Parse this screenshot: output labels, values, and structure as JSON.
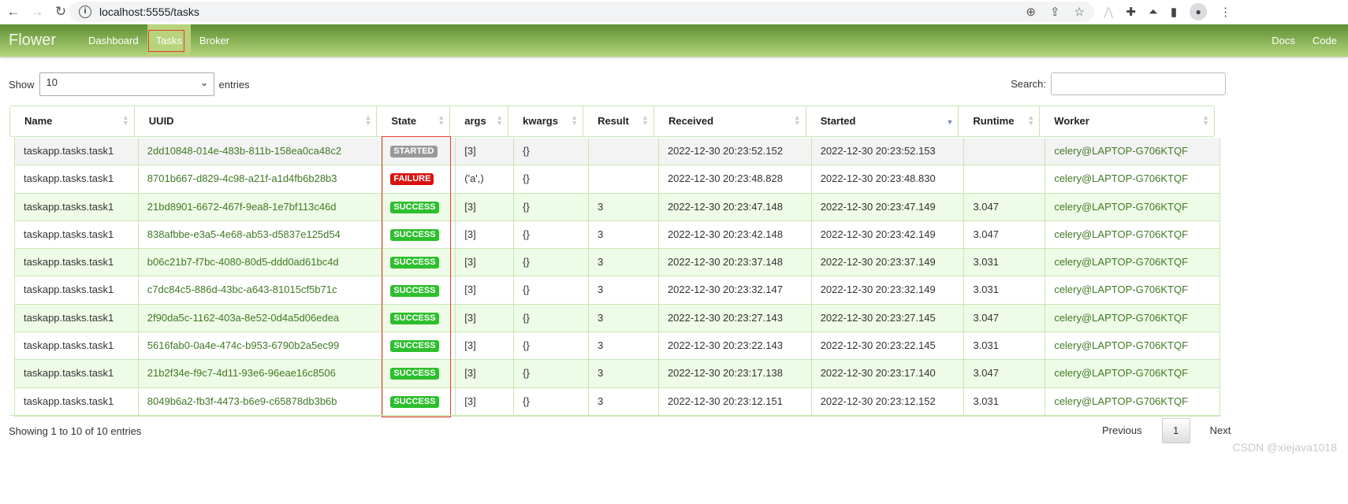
{
  "browser": {
    "url": "localhost:5555/tasks",
    "icons": [
      "back-icon",
      "forward-icon",
      "reload-icon",
      "info-icon",
      "zoom-icon",
      "share-icon",
      "star-icon",
      "extension-icon",
      "puzzle-icon",
      "lab-icon",
      "sidepanel-icon",
      "profile-icon",
      "menu-icon"
    ]
  },
  "navbar": {
    "brand": "Flower",
    "links": [
      "Dashboard",
      "Tasks",
      "Broker"
    ],
    "active": "Tasks",
    "right": [
      "Docs",
      "Code"
    ]
  },
  "controls": {
    "show_label": "Show",
    "page_size": "10",
    "entries_label": "entries",
    "search_label": "Search:",
    "search_value": ""
  },
  "table": {
    "columns": [
      "Name",
      "UUID",
      "State",
      "args",
      "kwargs",
      "Result",
      "Received",
      "Started",
      "Runtime",
      "Worker"
    ],
    "sorted_column": "Started",
    "sort_direction": "descending",
    "rows": [
      [
        "taskapp.tasks.task1",
        "2dd10848-014e-483b-811b-158ea0ca48c2",
        "STARTED",
        "[3]",
        "{}",
        "",
        "2022-12-30 20:23:52.152",
        "2022-12-30 20:23:52.153",
        "",
        "celery@LAPTOP-G706KTQF"
      ],
      [
        "taskapp.tasks.task1",
        "8701b667-d829-4c98-a21f-a1d4fb6b28b3",
        "FAILURE",
        "('a',)",
        "{}",
        "",
        "2022-12-30 20:23:48.828",
        "2022-12-30 20:23:48.830",
        "",
        "celery@LAPTOP-G706KTQF"
      ],
      [
        "taskapp.tasks.task1",
        "21bd8901-6672-467f-9ea8-1e7bf113c46d",
        "SUCCESS",
        "[3]",
        "{}",
        "3",
        "2022-12-30 20:23:47.148",
        "2022-12-30 20:23:47.149",
        "3.047",
        "celery@LAPTOP-G706KTQF"
      ],
      [
        "taskapp.tasks.task1",
        "838afbbe-e3a5-4e68-ab53-d5837e125d54",
        "SUCCESS",
        "[3]",
        "{}",
        "3",
        "2022-12-30 20:23:42.148",
        "2022-12-30 20:23:42.149",
        "3.047",
        "celery@LAPTOP-G706KTQF"
      ],
      [
        "taskapp.tasks.task1",
        "b06c21b7-f7bc-4080-80d5-ddd0ad61bc4d",
        "SUCCESS",
        "[3]",
        "{}",
        "3",
        "2022-12-30 20:23:37.148",
        "2022-12-30 20:23:37.149",
        "3.031",
        "celery@LAPTOP-G706KTQF"
      ],
      [
        "taskapp.tasks.task1",
        "c7dc84c5-886d-43bc-a643-81015cf5b71c",
        "SUCCESS",
        "[3]",
        "{}",
        "3",
        "2022-12-30 20:23:32.147",
        "2022-12-30 20:23:32.149",
        "3.031",
        "celery@LAPTOP-G706KTQF"
      ],
      [
        "taskapp.tasks.task1",
        "2f90da5c-1162-403a-8e52-0d4a5d06edea",
        "SUCCESS",
        "[3]",
        "{}",
        "3",
        "2022-12-30 20:23:27.143",
        "2022-12-30 20:23:27.145",
        "3.047",
        "celery@LAPTOP-G706KTQF"
      ],
      [
        "taskapp.tasks.task1",
        "5616fab0-0a4e-474c-b953-6790b2a5ec99",
        "SUCCESS",
        "[3]",
        "{}",
        "3",
        "2022-12-30 20:23:22.143",
        "2022-12-30 20:23:22.145",
        "3.031",
        "celery@LAPTOP-G706KTQF"
      ],
      [
        "taskapp.tasks.task1",
        "21b2f34e-f9c7-4d11-93e6-96eae16c8506",
        "SUCCESS",
        "[3]",
        "{}",
        "3",
        "2022-12-30 20:23:17.138",
        "2022-12-30 20:23:17.140",
        "3.047",
        "celery@LAPTOP-G706KTQF"
      ],
      [
        "taskapp.tasks.task1",
        "8049b6a2-fb3f-4473-b6e9-c65878db3b6b",
        "SUCCESS",
        "[3]",
        "{}",
        "3",
        "2022-12-30 20:23:12.151",
        "2022-12-30 20:23:12.152",
        "3.031",
        "celery@LAPTOP-G706KTQF"
      ]
    ]
  },
  "state_colors": {
    "STARTED": "#999999",
    "FAILURE": "#d9120f",
    "SUCCESS": "#2dbf2d"
  },
  "colors": {
    "navbar_top": "#5f8f33",
    "navbar_bottom": "#b3d57a",
    "link_green": "#3f7a23",
    "row_alt": "#eefbe6"
  },
  "footer": {
    "info": "Showing 1 to 10 of 10 entries",
    "previous": "Previous",
    "current_page": "1",
    "next": "Next"
  },
  "watermark": "CSDN @xiejava1018"
}
